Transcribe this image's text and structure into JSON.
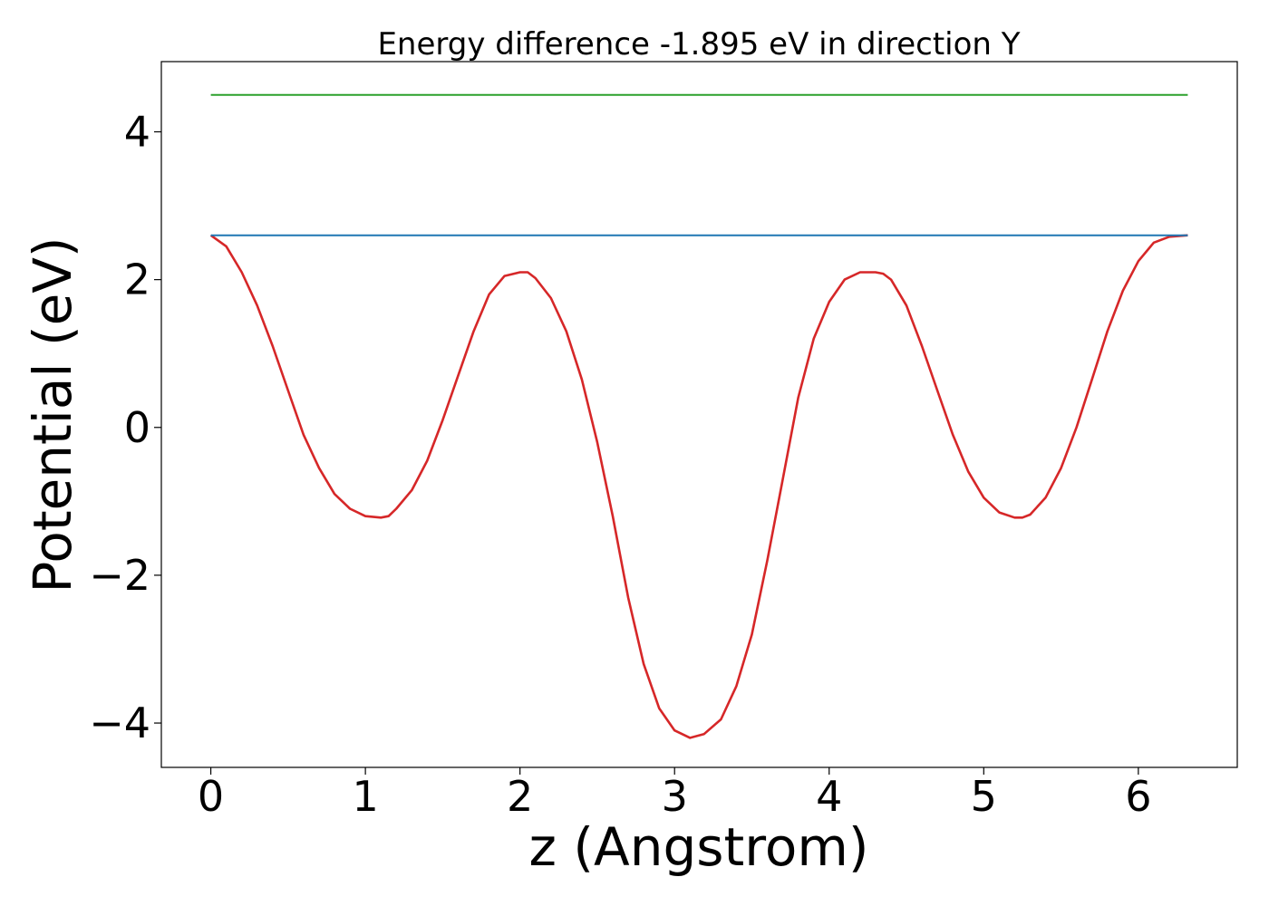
{
  "chart_data": {
    "type": "line",
    "title": "Energy difference -1.895 eV in direction Y",
    "xlabel": "z (Angstrom)",
    "ylabel": "Potential (eV)",
    "xlim": [
      -0.32,
      6.64
    ],
    "ylim": [
      -4.6,
      4.95
    ],
    "xticks": [
      0,
      1,
      2,
      3,
      4,
      5,
      6
    ],
    "xtick_labels": [
      "0",
      "1",
      "2",
      "3",
      "4",
      "5",
      "6"
    ],
    "yticks": [
      -4,
      -2,
      0,
      2,
      4
    ],
    "ytick_labels": [
      "−4",
      "−2",
      "0",
      "2",
      "4"
    ],
    "grid": false,
    "legend": "none",
    "series": [
      {
        "color": "#d62728",
        "kind": "curve",
        "x": [
          0,
          0.1,
          0.2,
          0.3,
          0.4,
          0.5,
          0.6,
          0.7,
          0.8,
          0.9,
          1.0,
          1.1,
          1.15,
          1.2,
          1.3,
          1.4,
          1.5,
          1.6,
          1.7,
          1.8,
          1.9,
          2.0,
          2.05,
          2.1,
          2.2,
          2.3,
          2.4,
          2.5,
          2.6,
          2.7,
          2.8,
          2.9,
          3.0,
          3.1,
          3.19,
          3.3,
          3.4,
          3.5,
          3.6,
          3.7,
          3.8,
          3.9,
          4.0,
          4.1,
          4.2,
          4.3,
          4.35,
          4.4,
          4.5,
          4.6,
          4.7,
          4.8,
          4.9,
          5.0,
          5.1,
          5.2,
          5.25,
          5.3,
          5.4,
          5.5,
          5.6,
          5.7,
          5.8,
          5.9,
          6.0,
          6.1,
          6.2,
          6.32
        ],
        "y": [
          2.6,
          2.45,
          2.1,
          1.65,
          1.1,
          0.5,
          -0.1,
          -0.55,
          -0.9,
          -1.1,
          -1.2,
          -1.22,
          -1.2,
          -1.1,
          -0.85,
          -0.45,
          0.1,
          0.7,
          1.3,
          1.8,
          2.05,
          2.1,
          2.1,
          2.02,
          1.75,
          1.3,
          0.65,
          -0.2,
          -1.2,
          -2.3,
          -3.2,
          -3.8,
          -4.1,
          -4.2,
          -4.15,
          -3.95,
          -3.5,
          -2.8,
          -1.8,
          -0.7,
          0.4,
          1.2,
          1.7,
          2.0,
          2.1,
          2.1,
          2.08,
          2.0,
          1.65,
          1.1,
          0.5,
          -0.1,
          -0.6,
          -0.95,
          -1.15,
          -1.22,
          -1.22,
          -1.18,
          -0.95,
          -0.55,
          0.0,
          0.65,
          1.3,
          1.85,
          2.25,
          2.5,
          2.58,
          2.6
        ]
      },
      {
        "color": "#1f77b4",
        "kind": "level",
        "x": [
          0,
          6.32
        ],
        "y": [
          2.6,
          2.6
        ]
      },
      {
        "color": "#2ca02c",
        "kind": "level",
        "x": [
          0,
          6.32
        ],
        "y": [
          4.5,
          4.5
        ]
      }
    ]
  }
}
